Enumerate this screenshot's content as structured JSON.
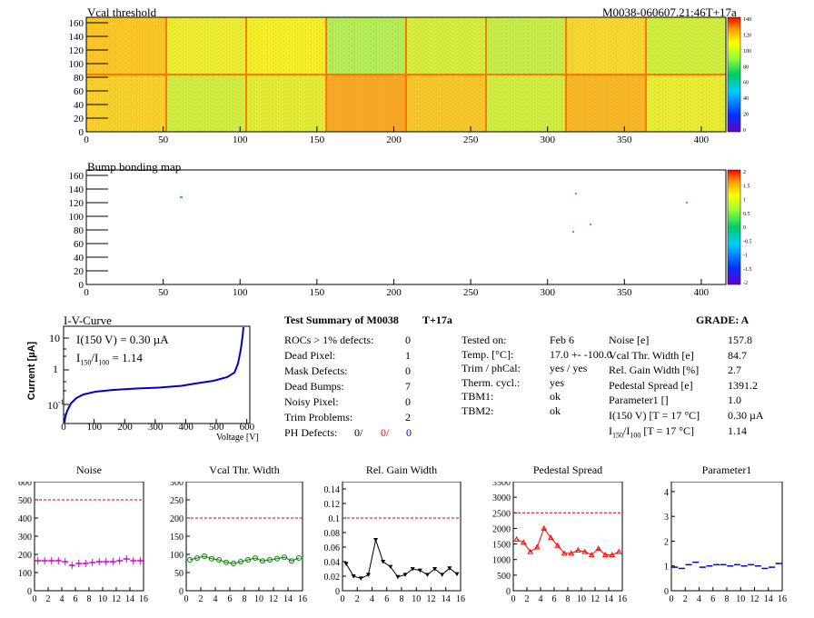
{
  "maps": {
    "vcal_title": "Vcal threshold",
    "module_id": "M0038-060607.21:46T+17a",
    "bump_title": "Bump bonding map",
    "x_ticks": [
      "0",
      "50",
      "100",
      "150",
      "200",
      "250",
      "300",
      "350",
      "400"
    ],
    "x_tick_values": [
      0,
      50,
      100,
      150,
      200,
      250,
      300,
      350,
      400
    ],
    "y_ticks": [
      "0",
      "20",
      "40",
      "60",
      "80",
      "100",
      "120",
      "140",
      "160"
    ],
    "y_tick_values": [
      0,
      20,
      40,
      60,
      80,
      100,
      120,
      140,
      160
    ],
    "vcal_scale": [
      "140",
      "120",
      "100",
      "80",
      "60",
      "40",
      "20",
      "0"
    ],
    "bump_scale": [
      "2",
      "1.5",
      "1",
      "0.5",
      "0",
      "-0.5",
      "-1",
      "-1.5",
      "-2"
    ]
  },
  "iv": {
    "title": "I-V-Curve",
    "ylabel": "Current [µA]",
    "xlabel": "Voltage [V]",
    "annot1": "I(150 V) = 0.30 µA",
    "annot2_pre": "I",
    "annot2_sub1": "150",
    "annot2_mid": "/I",
    "annot2_sub2": "100",
    "annot2_post": " =  1.14",
    "x_ticks": [
      "0",
      "100",
      "200",
      "300",
      "400",
      "500",
      "600"
    ],
    "y_ticks": [
      "10",
      "1",
      "10"
    ],
    "y_sup": "-1"
  },
  "summary": {
    "title": "Test Summary of M0038",
    "tag": "T+17a",
    "grade": "GRADE:  A",
    "left": [
      {
        "label": "ROCs > 1% defects:",
        "value": "0"
      },
      {
        "label": "Dead Pixel:",
        "value": "1"
      },
      {
        "label": "Mask Defects:",
        "value": "0"
      },
      {
        "label": "Dead Bumps:",
        "value": "7"
      },
      {
        "label": "Noisy Pixel:",
        "value": "0"
      },
      {
        "label": "Trim Problems:",
        "value": "2"
      }
    ],
    "ph_label": "PH Defects:",
    "ph_values": [
      "0/",
      "0/",
      "0"
    ],
    "ph_colors": [
      "#000000",
      "#ff0000",
      "#0000ff"
    ],
    "mid": [
      {
        "label": "Tested on:",
        "value": "Feb 6"
      },
      {
        "label": "Temp. [°C]:",
        "value": "17.0 +- -100.0"
      },
      {
        "label": "Trim / phCal:",
        "value": "yes / yes"
      },
      {
        "label": "Therm. cycl.:",
        "value": "yes"
      },
      {
        "label": "TBM1:",
        "value": "ok"
      },
      {
        "label": "TBM2:",
        "value": "ok"
      }
    ],
    "right": [
      {
        "label": "Noise [e]",
        "value": "157.8"
      },
      {
        "label": "Vcal Thr. Width [e]",
        "value": "84.7"
      },
      {
        "label": "Rel. Gain Width [%]",
        "value": "2.7"
      },
      {
        "label": "Pedestal Spread [e]",
        "value": "1391.2"
      },
      {
        "label": "Parameter1 []",
        "value": "1.0"
      },
      {
        "label": "I(150 V) [T = 17 °C]",
        "value": "0.30 µA"
      }
    ],
    "ratio_label_pre": "I",
    "ratio_sub1": "150",
    "ratio_mid": "/I",
    "ratio_sub2": "100",
    "ratio_post": "  [T = 17 °C]",
    "ratio_value": "1.14"
  },
  "chart_data": [
    {
      "type": "scatter",
      "title": "Noise",
      "x": [
        0,
        1,
        2,
        3,
        4,
        5,
        6,
        7,
        8,
        9,
        10,
        11,
        12,
        13,
        14,
        15
      ],
      "values": [
        165,
        165,
        165,
        165,
        160,
        140,
        150,
        150,
        155,
        160,
        160,
        160,
        165,
        175,
        165,
        165
      ],
      "ylim": [
        0,
        600
      ],
      "y_ticks": [
        0,
        100,
        200,
        300,
        400,
        500,
        600
      ],
      "xlim": [
        0,
        16
      ],
      "x_ticks": [
        0,
        2,
        4,
        6,
        8,
        10,
        12,
        14,
        16
      ],
      "threshold": 500,
      "color": "#cc00cc",
      "style": "errorbar"
    },
    {
      "type": "line",
      "title": "Vcal Thr. Width",
      "x": [
        0,
        1,
        2,
        3,
        4,
        5,
        6,
        7,
        8,
        9,
        10,
        11,
        12,
        13,
        14,
        15
      ],
      "values": [
        85,
        90,
        95,
        88,
        85,
        78,
        75,
        80,
        85,
        90,
        82,
        85,
        88,
        92,
        82,
        90
      ],
      "ylim": [
        0,
        300
      ],
      "y_ticks": [
        0,
        50,
        100,
        150,
        200,
        250,
        300
      ],
      "xlim": [
        0,
        16
      ],
      "x_ticks": [
        0,
        2,
        4,
        6,
        8,
        10,
        12,
        14,
        16
      ],
      "threshold": 200,
      "color": "#008000",
      "style": "circle"
    },
    {
      "type": "line",
      "title": "Rel. Gain Width",
      "x": [
        0,
        1,
        2,
        3,
        4,
        5,
        6,
        7,
        8,
        9,
        10,
        11,
        12,
        13,
        14,
        15
      ],
      "values": [
        0.037,
        0.02,
        0.017,
        0.022,
        0.07,
        0.04,
        0.033,
        0.019,
        0.022,
        0.03,
        0.028,
        0.022,
        0.03,
        0.022,
        0.031,
        0.023
      ],
      "ylim": [
        0,
        0.15
      ],
      "y_ticks": [
        0,
        0.02,
        0.04,
        0.06,
        0.08,
        0.1,
        0.12,
        0.14
      ],
      "xlim": [
        0,
        16
      ],
      "x_ticks": [
        0,
        2,
        4,
        6,
        8,
        10,
        12,
        14,
        16
      ],
      "threshold": 0.1,
      "color": "#000000",
      "style": "triangle-down"
    },
    {
      "type": "line",
      "title": "Pedestal Spread",
      "x": [
        0,
        1,
        2,
        3,
        4,
        5,
        6,
        7,
        8,
        9,
        10,
        11,
        12,
        13,
        14,
        15
      ],
      "values": [
        1650,
        1550,
        1250,
        1400,
        2000,
        1700,
        1450,
        1200,
        1200,
        1300,
        1250,
        1150,
        1350,
        1150,
        1150,
        1250
      ],
      "ylim": [
        0,
        3500
      ],
      "y_ticks": [
        0,
        500,
        1000,
        1500,
        2000,
        2500,
        3000,
        3500
      ],
      "xlim": [
        0,
        16
      ],
      "x_ticks": [
        0,
        2,
        4,
        6,
        8,
        10,
        12,
        14,
        16
      ],
      "threshold": 2500,
      "color": "#ff0000",
      "style": "triangle-up"
    },
    {
      "type": "scatter",
      "title": "Parameter1",
      "x": [
        0,
        1,
        2,
        3,
        4,
        5,
        6,
        7,
        8,
        9,
        10,
        11,
        12,
        13,
        14,
        15
      ],
      "values": [
        0.95,
        0.9,
        1.05,
        1.15,
        0.95,
        1.0,
        1.05,
        1.05,
        1.0,
        1.05,
        1.0,
        1.05,
        1.0,
        0.9,
        0.95,
        1.1
      ],
      "ylim": [
        0,
        4.4
      ],
      "y_ticks": [
        0,
        1,
        2,
        3,
        4
      ],
      "xlim": [
        0,
        16
      ],
      "x_ticks": [
        0,
        2,
        4,
        6,
        8,
        10,
        12,
        14,
        16
      ],
      "threshold": null,
      "color": "#0000cc",
      "style": "errorbar"
    }
  ]
}
